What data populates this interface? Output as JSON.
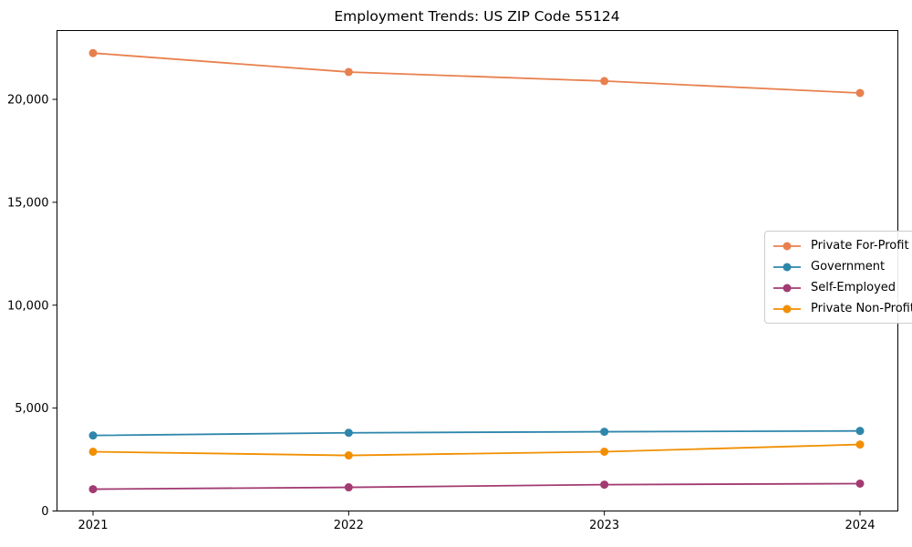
{
  "chart_data": {
    "type": "line",
    "title": "Employment Trends: US ZIP Code 55124",
    "x": [
      2021,
      2022,
      2023,
      2024
    ],
    "xtick_labels": [
      "2021",
      "2022",
      "2023",
      "2024"
    ],
    "yticks": [
      0,
      5000,
      10000,
      15000,
      20000
    ],
    "ytick_labels": [
      "0",
      "5,000",
      "10,000",
      "15,000",
      "20,000"
    ],
    "ylim": [
      0,
      23400
    ],
    "xlabel": "",
    "ylabel": "",
    "grid": false,
    "marker": "circle",
    "legend_position": "center right",
    "axis_color": "#000000",
    "background_color": "#ffffff",
    "series": [
      {
        "name": "Private For-Profit",
        "color": "#E8804E",
        "values": [
          22250,
          21330,
          20890,
          20310
        ]
      },
      {
        "name": "Government",
        "color": "#2E86AB",
        "values": [
          3670,
          3800,
          3850,
          3890
        ]
      },
      {
        "name": "Self-Employed",
        "color": "#A23B72",
        "values": [
          1060,
          1150,
          1280,
          1330
        ]
      },
      {
        "name": "Private Non-Profit",
        "color": "#F18F01",
        "values": [
          2880,
          2700,
          2880,
          3230
        ]
      }
    ]
  }
}
